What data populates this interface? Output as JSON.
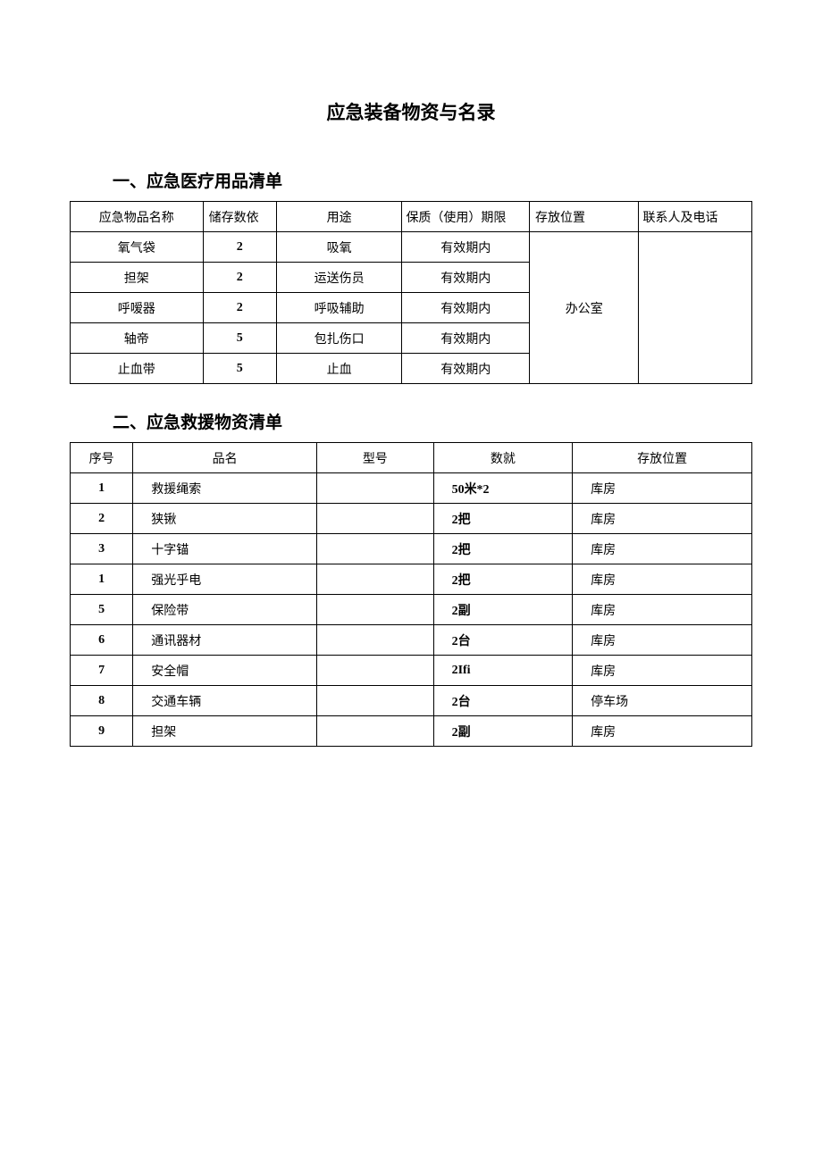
{
  "title": "应急装备物资与名录",
  "section1": {
    "heading": "一、应急医疗用品清单",
    "headers": {
      "c0": "应急物品名称",
      "c1": "储存数依",
      "c2": "用途",
      "c3": "保质（使用）期限",
      "c4": "存放位置",
      "c5": "联系人及电话"
    },
    "location_merged": "办公室",
    "rows": [
      {
        "name": "氧气袋",
        "qty": "2",
        "use": "吸氧",
        "period": "有效期内"
      },
      {
        "name": "担架",
        "qty": "2",
        "use": "运送伤员",
        "period": "有效期内"
      },
      {
        "name": "呼嗳器",
        "qty": "2",
        "use": "呼吸辅助",
        "period": "有效期内"
      },
      {
        "name": "轴帝",
        "qty": "5",
        "use": "包扎伤口",
        "period": "有效期内"
      },
      {
        "name": "止血带",
        "qty": "5",
        "use": "止血",
        "period": "有效期内"
      }
    ]
  },
  "section2": {
    "heading": "二、应急救援物资清单",
    "headers": {
      "c0": "序号",
      "c1": "品名",
      "c2": "型号",
      "c3": "数就",
      "c4": "存放位置"
    },
    "rows": [
      {
        "seq": "1",
        "name": "救援绳索",
        "model": "",
        "qty": "50米*2",
        "loc": "库房"
      },
      {
        "seq": "2",
        "name": "狭锹",
        "model": "",
        "qty": "2把",
        "loc": "库房"
      },
      {
        "seq": "3",
        "name": "十字锚",
        "model": "",
        "qty": "2把",
        "loc": "库房"
      },
      {
        "seq": "1",
        "name": "强光乎电",
        "model": "",
        "qty": "2把",
        "loc": "库房"
      },
      {
        "seq": "5",
        "name": "保险带",
        "model": "",
        "qty": "2副",
        "loc": "库房"
      },
      {
        "seq": "6",
        "name": "通讯器材",
        "model": "",
        "qty": "2台",
        "loc": "库房"
      },
      {
        "seq": "7",
        "name": "安全帽",
        "model": "",
        "qty": "2Ifi",
        "loc": "库房"
      },
      {
        "seq": "8",
        "name": "交通车辆",
        "model": "",
        "qty": "2台",
        "loc": "停车场"
      },
      {
        "seq": "9",
        "name": "担架",
        "model": "",
        "qty": "2副",
        "loc": "库房"
      }
    ]
  }
}
